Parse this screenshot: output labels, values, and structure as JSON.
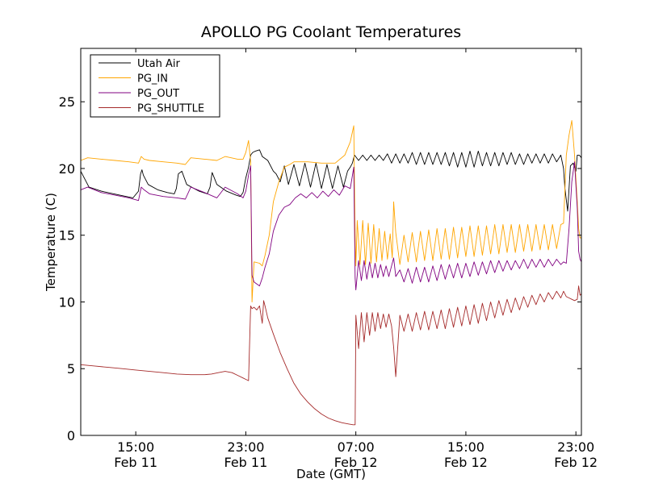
{
  "chart_data": {
    "type": "line",
    "title": "APOLLO PG Coolant Temperatures",
    "xlabel": "Date (GMT)",
    "ylabel": "Temperature (C)",
    "x_unit": "hours since Feb 11 00:00 GMT",
    "xlim": [
      11.0,
      47.4
    ],
    "ylim": [
      0,
      29
    ],
    "grid": false,
    "legend_position": "top-left",
    "yticks": [
      0,
      5,
      10,
      15,
      20,
      25
    ],
    "xticks": [
      {
        "value": 15,
        "time": "15:00",
        "date": "Feb 11"
      },
      {
        "value": 23,
        "time": "23:00",
        "date": "Feb 11"
      },
      {
        "value": 31,
        "time": "07:00",
        "date": "Feb 12"
      },
      {
        "value": 39,
        "time": "15:00",
        "date": "Feb 12"
      },
      {
        "value": 47,
        "time": "23:00",
        "date": "Feb 12"
      }
    ],
    "series": [
      {
        "name": "Utah Air",
        "color": "#000000",
        "x": [
          11.0,
          11.6,
          12.5,
          13.4,
          14.3,
          14.8,
          15.2,
          15.35,
          15.45,
          15.55,
          15.9,
          16.6,
          17.3,
          17.8,
          17.95,
          18.1,
          18.35,
          18.7,
          19.6,
          20.2,
          20.4,
          20.55,
          20.9,
          21.6,
          22.3,
          22.6,
          22.8,
          23.0,
          23.2,
          23.35,
          23.5,
          23.7,
          24.0,
          24.2,
          24.6,
          25.0,
          25.2,
          25.5,
          25.8,
          26.1,
          26.5,
          26.9,
          27.3,
          27.7,
          28.1,
          28.5,
          28.9,
          29.3,
          29.7,
          30.1,
          30.4,
          30.6,
          30.75,
          30.9,
          31.2,
          31.5,
          31.8,
          32.1,
          32.4,
          32.7,
          33.0,
          33.3,
          33.6,
          33.9,
          34.2,
          34.5,
          34.8,
          35.1,
          35.4,
          35.7,
          36.0,
          36.3,
          36.6,
          36.9,
          37.2,
          37.5,
          37.8,
          38.1,
          38.4,
          38.7,
          39.0,
          39.3,
          39.6,
          39.9,
          40.2,
          40.5,
          40.8,
          41.1,
          41.4,
          41.7,
          42.0,
          42.3,
          42.6,
          42.9,
          43.2,
          43.5,
          43.8,
          44.1,
          44.4,
          44.7,
          45.0,
          45.3,
          45.6,
          45.9,
          46.1,
          46.2,
          46.4,
          46.6,
          46.8,
          47.0,
          47.1,
          47.25,
          47.4
        ],
        "y": [
          19.8,
          18.6,
          18.3,
          18.1,
          17.9,
          17.8,
          18.3,
          19.6,
          19.9,
          19.5,
          18.8,
          18.4,
          18.2,
          18.1,
          18.5,
          19.6,
          19.8,
          18.8,
          18.3,
          18.1,
          18.6,
          19.7,
          18.8,
          18.3,
          18.0,
          17.9,
          18.2,
          19.3,
          20.1,
          21.0,
          21.2,
          21.3,
          21.4,
          20.9,
          20.6,
          19.8,
          19.6,
          19.0,
          20.2,
          18.8,
          20.3,
          18.7,
          20.4,
          18.6,
          20.4,
          18.5,
          20.3,
          18.5,
          20.2,
          18.6,
          19.8,
          20.1,
          20.4,
          21.0,
          20.6,
          21.0,
          20.6,
          21.0,
          20.6,
          21.0,
          20.6,
          21.1,
          20.4,
          21.1,
          20.4,
          21.1,
          20.4,
          21.2,
          20.3,
          21.2,
          20.3,
          21.2,
          20.3,
          21.2,
          20.3,
          21.2,
          20.2,
          21.2,
          20.1,
          21.2,
          20.1,
          21.3,
          20.1,
          21.3,
          20.2,
          21.2,
          20.2,
          21.2,
          20.2,
          21.2,
          20.3,
          21.2,
          20.3,
          21.1,
          20.3,
          21.1,
          20.4,
          21.1,
          20.4,
          21.1,
          20.4,
          21.1,
          20.5,
          21.0,
          20.0,
          18.5,
          16.8,
          20.2,
          20.4,
          19.8,
          21.0,
          21.0,
          20.8
        ]
      },
      {
        "name": "PG_IN",
        "color": "#ffa500",
        "x": [
          11.0,
          11.5,
          12.5,
          13.5,
          14.5,
          15.2,
          15.4,
          15.6,
          16.0,
          17.0,
          18.0,
          18.6,
          19.0,
          20.0,
          20.9,
          21.5,
          22.4,
          22.8,
          23.0,
          23.2,
          23.35,
          23.45,
          23.6,
          24.0,
          24.2,
          24.4,
          24.7,
          25.0,
          25.4,
          25.8,
          26.2,
          26.5,
          27.5,
          28.5,
          29.5,
          30.2,
          30.6,
          30.85,
          30.95,
          31.0,
          31.1,
          31.3,
          31.5,
          31.7,
          31.9,
          32.1,
          32.3,
          32.5,
          32.7,
          32.9,
          33.1,
          33.3,
          33.5,
          33.65,
          33.75,
          33.9,
          34.2,
          34.5,
          34.8,
          35.1,
          35.4,
          35.7,
          36.0,
          36.3,
          36.6,
          36.9,
          37.2,
          37.5,
          37.8,
          38.1,
          38.4,
          38.7,
          39.0,
          39.3,
          39.6,
          39.9,
          40.2,
          40.5,
          40.8,
          41.1,
          41.4,
          41.7,
          42.0,
          42.3,
          42.6,
          42.9,
          43.2,
          43.5,
          43.8,
          44.1,
          44.4,
          44.7,
          45.0,
          45.3,
          45.6,
          45.9,
          46.1,
          46.3,
          46.5,
          46.7,
          46.9,
          47.1,
          47.2,
          47.3,
          47.4
        ],
        "y": [
          20.6,
          20.8,
          20.7,
          20.6,
          20.5,
          20.4,
          20.9,
          20.7,
          20.6,
          20.5,
          20.4,
          20.3,
          20.8,
          20.7,
          20.6,
          20.9,
          20.7,
          20.7,
          21.2,
          22.1,
          20.5,
          10.0,
          13.0,
          12.9,
          12.7,
          13.5,
          15.0,
          17.5,
          19.0,
          20.1,
          20.3,
          20.5,
          20.5,
          20.4,
          20.4,
          21.0,
          22.0,
          23.2,
          15.0,
          12.7,
          16.1,
          12.8,
          16.1,
          12.8,
          15.9,
          12.9,
          15.8,
          13.0,
          15.5,
          13.1,
          15.3,
          13.2,
          15.1,
          13.3,
          17.5,
          15.2,
          12.8,
          15.0,
          13.0,
          15.2,
          13.0,
          15.3,
          13.1,
          15.4,
          13.1,
          15.5,
          13.2,
          15.5,
          13.2,
          15.6,
          13.3,
          15.6,
          13.4,
          15.7,
          13.4,
          15.7,
          13.5,
          15.7,
          13.6,
          15.8,
          13.6,
          15.8,
          13.7,
          15.8,
          13.7,
          15.8,
          13.8,
          15.8,
          13.8,
          15.8,
          13.9,
          15.8,
          13.9,
          15.8,
          14.0,
          15.8,
          15.9,
          21.0,
          22.5,
          23.6,
          21.0,
          17.5,
          15.5,
          14.8,
          14.8
        ]
      },
      {
        "name": "PG_OUT",
        "color": "#800080",
        "x": [
          11.0,
          11.5,
          12.5,
          13.5,
          14.5,
          15.2,
          15.4,
          15.6,
          16.0,
          17.0,
          18.0,
          18.6,
          19.0,
          20.0,
          20.9,
          21.5,
          22.4,
          22.8,
          23.0,
          23.2,
          23.35,
          23.45,
          23.6,
          24.0,
          24.2,
          24.4,
          24.7,
          25.0,
          25.4,
          25.8,
          26.2,
          26.6,
          27.0,
          27.4,
          27.8,
          28.2,
          28.6,
          29.0,
          29.4,
          29.8,
          30.2,
          30.6,
          30.85,
          30.95,
          31.0,
          31.2,
          31.4,
          31.6,
          31.8,
          32.0,
          32.2,
          32.4,
          32.6,
          32.8,
          33.0,
          33.2,
          33.4,
          33.6,
          33.75,
          33.9,
          34.2,
          34.5,
          34.8,
          35.1,
          35.4,
          35.7,
          36.0,
          36.3,
          36.6,
          36.9,
          37.2,
          37.5,
          37.8,
          38.1,
          38.4,
          38.7,
          39.0,
          39.3,
          39.6,
          39.9,
          40.2,
          40.5,
          40.8,
          41.1,
          41.4,
          41.7,
          42.0,
          42.3,
          42.6,
          42.9,
          43.2,
          43.5,
          43.8,
          44.1,
          44.4,
          44.7,
          45.0,
          45.3,
          45.6,
          45.9,
          46.1,
          46.3,
          46.5,
          46.7,
          46.9,
          47.1,
          47.2,
          47.3,
          47.4
        ],
        "y": [
          18.4,
          18.6,
          18.2,
          18.0,
          17.8,
          17.6,
          18.6,
          18.4,
          18.1,
          17.9,
          17.8,
          17.7,
          18.6,
          18.2,
          17.8,
          18.6,
          18.1,
          17.8,
          18.3,
          19.5,
          20.2,
          12.0,
          11.5,
          11.2,
          11.8,
          12.6,
          13.6,
          15.3,
          16.5,
          17.1,
          17.3,
          17.8,
          18.1,
          17.8,
          18.2,
          17.8,
          18.3,
          17.9,
          18.4,
          18.0,
          18.7,
          18.5,
          20.1,
          11.8,
          10.9,
          13.1,
          11.6,
          13.1,
          11.7,
          13.0,
          11.8,
          12.9,
          11.8,
          12.8,
          11.9,
          12.7,
          11.9,
          12.7,
          13.3,
          11.9,
          12.4,
          11.5,
          12.5,
          11.4,
          12.6,
          11.5,
          12.6,
          11.5,
          12.7,
          11.6,
          12.8,
          11.7,
          12.8,
          11.8,
          12.9,
          11.8,
          12.9,
          11.9,
          13.0,
          12.0,
          13.0,
          12.1,
          13.1,
          12.2,
          13.1,
          12.3,
          13.1,
          12.4,
          13.1,
          12.5,
          13.2,
          12.5,
          13.2,
          12.6,
          13.2,
          12.6,
          13.2,
          12.7,
          13.2,
          12.8,
          13.0,
          12.9,
          15.5,
          19.0,
          20.5,
          17.0,
          13.8,
          13.2,
          13.0
        ]
      },
      {
        "name": "PG_SHUTTLE",
        "color": "#a52a2a",
        "x": [
          11.0,
          12.0,
          13.0,
          14.0,
          15.0,
          16.0,
          17.0,
          18.0,
          19.0,
          19.5,
          20.0,
          20.5,
          21.0,
          21.5,
          22.0,
          22.4,
          22.8,
          23.0,
          23.2,
          23.35,
          23.45,
          23.6,
          23.8,
          24.0,
          24.2,
          24.3,
          24.4,
          24.6,
          25.0,
          25.5,
          26.0,
          26.5,
          27.0,
          27.5,
          28.0,
          28.5,
          29.0,
          29.5,
          30.0,
          30.5,
          30.8,
          30.95,
          31.0,
          31.2,
          31.4,
          31.6,
          31.8,
          32.0,
          32.2,
          32.4,
          32.6,
          32.8,
          33.0,
          33.2,
          33.4,
          33.6,
          33.75,
          33.9,
          34.2,
          34.5,
          34.8,
          35.1,
          35.4,
          35.7,
          36.0,
          36.3,
          36.6,
          36.9,
          37.2,
          37.5,
          37.8,
          38.1,
          38.4,
          38.7,
          39.0,
          39.3,
          39.6,
          39.9,
          40.2,
          40.5,
          40.8,
          41.1,
          41.4,
          41.7,
          42.0,
          42.3,
          42.6,
          42.9,
          43.2,
          43.5,
          43.8,
          44.1,
          44.4,
          44.7,
          45.0,
          45.3,
          45.6,
          45.9,
          46.1,
          46.3,
          46.5,
          46.7,
          46.9,
          47.1,
          47.2,
          47.3,
          47.4
        ],
        "y": [
          5.3,
          5.2,
          5.1,
          5.0,
          4.9,
          4.8,
          4.7,
          4.6,
          4.55,
          4.55,
          4.55,
          4.6,
          4.7,
          4.8,
          4.7,
          4.5,
          4.3,
          4.2,
          4.1,
          9.7,
          9.5,
          9.6,
          9.4,
          9.7,
          8.4,
          10.1,
          9.7,
          8.8,
          7.6,
          6.2,
          5.0,
          3.9,
          3.1,
          2.5,
          2.0,
          1.6,
          1.3,
          1.1,
          0.95,
          0.85,
          0.8,
          0.8,
          9.0,
          6.5,
          9.2,
          7.0,
          9.2,
          7.5,
          9.2,
          7.8,
          9.2,
          8.0,
          9.1,
          8.1,
          9.1,
          8.2,
          6.6,
          4.4,
          9.0,
          7.8,
          9.1,
          7.8,
          9.2,
          7.9,
          9.3,
          7.9,
          9.3,
          8.0,
          9.4,
          8.0,
          9.5,
          8.1,
          9.6,
          8.2,
          9.7,
          8.3,
          9.8,
          8.4,
          9.9,
          8.6,
          10.0,
          8.8,
          10.1,
          9.0,
          10.2,
          9.2,
          10.3,
          9.4,
          10.4,
          9.6,
          10.5,
          9.8,
          10.6,
          10.0,
          10.7,
          10.2,
          10.8,
          10.3,
          10.8,
          10.4,
          10.3,
          10.2,
          10.1,
          10.2,
          11.2,
          10.5,
          10.6
        ]
      }
    ]
  }
}
